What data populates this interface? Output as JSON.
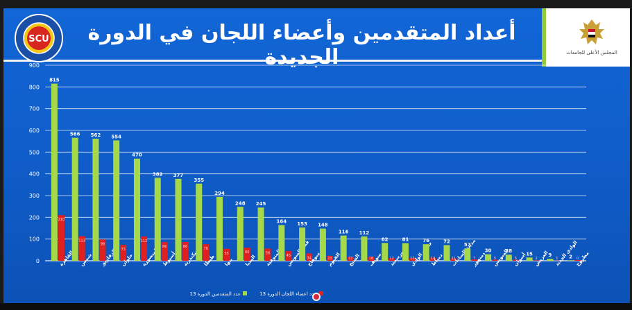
{
  "header": {
    "title": "أعداد المتقدمين وأعضاء اللجان في الدورة الجديدة",
    "logo_text": "SCU",
    "logo_ring_text": "المجلس الأعلى للجامعات",
    "logo_ring_text_en": "SUPREME COUNCIL OF UNIVERSITIES",
    "emblem_caption": "المجلس الأعلى للجامعات"
  },
  "colors": {
    "slide_blue": "#1266d6",
    "applicants_bar": "#a6d94a",
    "members_bar": "#e0201e",
    "grid": "#ffffff"
  },
  "chart_data": {
    "type": "bar",
    "ylim": [
      0,
      900
    ],
    "yticks": [
      0,
      100,
      200,
      300,
      400,
      500,
      600,
      700,
      800,
      900
    ],
    "grid": true,
    "legend_position": "bottom",
    "categories": [
      "القاهرة",
      "عين شمس",
      "الزقازيق",
      "حلوان",
      "المنصورة",
      "أسيوط",
      "الإسكندرية",
      "طنطا",
      "بنها",
      "المنيا",
      "المنوفية",
      "قناة السويس",
      "سوهاج",
      "الفيوم",
      "كفر الشيخ",
      "بني سويف",
      "بورسعيد",
      "جنوب الوادي",
      "دمياط",
      "مدينة السادات",
      "دمنهور",
      "السويس",
      "أسوان",
      "العريش",
      "الوادي الجديد",
      "مطروح"
    ],
    "series": [
      {
        "name": "عدد المتقدمين الدورة 13",
        "color": "#a6d94a",
        "values": [
          815,
          566,
          562,
          554,
          470,
          382,
          377,
          355,
          294,
          248,
          245,
          164,
          153,
          148,
          116,
          112,
          82,
          81,
          76,
          72,
          57,
          30,
          28,
          15,
          9,
          2
        ],
        "labels": [
          "815",
          "566",
          "562",
          "554",
          "470",
          "382",
          "377",
          "355",
          "294",
          "248",
          "245",
          "164",
          "153",
          "148",
          "116",
          "112",
          "82",
          "81",
          "76",
          "72",
          "57",
          "30",
          "28",
          "15",
          "9",
          "2"
        ]
      },
      {
        "name": "عدد اعضاء اللجان الدورة 13",
        "color": "#e0201e",
        "values": [
          210,
          113,
          98,
          73,
          112,
          86,
          86,
          76,
          55,
          60,
          56,
          45,
          34,
          23,
          17,
          18,
          12,
          12,
          14,
          11,
          7,
          5,
          5,
          2,
          1,
          0
        ],
        "labels": [
          "210",
          "113",
          "98",
          "73",
          "112",
          "86",
          "86",
          "76",
          "55",
          "60",
          "56",
          "45",
          "34",
          "23",
          "17",
          "18",
          "12",
          "12",
          "14",
          "11",
          "7",
          "5",
          "5",
          "2",
          "1",
          "0"
        ]
      }
    ]
  }
}
